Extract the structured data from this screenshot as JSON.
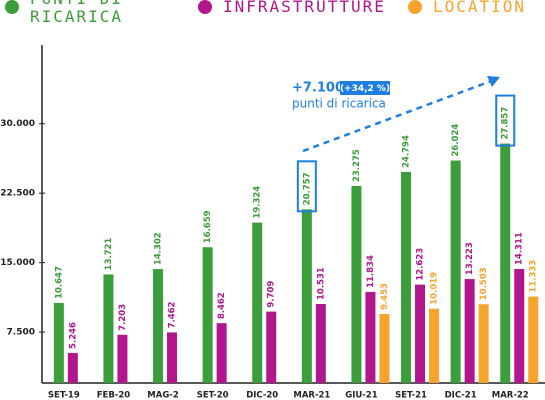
{
  "chart_data": {
    "type": "bar",
    "categories": [
      "SET-19",
      "FEB-20",
      "MAG-2",
      "SET-20",
      "DIC-20",
      "MAR-21",
      "GIU-21",
      "SET-21",
      "DIC-21",
      "MAR-22"
    ],
    "series": [
      {
        "name": "PUNTI DI RICARICA",
        "color": "#3c9e3a",
        "values": [
          10647,
          13721,
          14302,
          16659,
          19324,
          20757,
          23275,
          24794,
          26024,
          27857
        ],
        "value_labels": [
          "10.647",
          "13.721",
          "14.302",
          "16.659",
          "19.324",
          "20.757",
          "23.275",
          "24.794",
          "26.024",
          "27.857"
        ]
      },
      {
        "name": "INFRASTRUTTURE",
        "color": "#b2168e",
        "values": [
          5246,
          7203,
          7462,
          8462,
          9709,
          10531,
          11834,
          12623,
          13223,
          14311
        ],
        "value_labels": [
          "5.246",
          "7.203",
          "7.462",
          "8.462",
          "9.709",
          "10.531",
          "11.834",
          "12.623",
          "13.223",
          "14.311"
        ]
      },
      {
        "name": "LOCATION",
        "color": "#f7a32c",
        "values": [
          null,
          null,
          null,
          null,
          null,
          null,
          9453,
          10019,
          10503,
          11333
        ],
        "value_labels": [
          null,
          null,
          null,
          null,
          null,
          null,
          "9.453",
          "10.019",
          "10.503",
          "11.333"
        ]
      }
    ],
    "ylim": [
      2000,
      38500
    ],
    "yticks": [
      {
        "value": 7500,
        "label": "7.500"
      },
      {
        "value": 15000,
        "label": "15.000"
      },
      {
        "value": 22500,
        "label": "22.500"
      },
      {
        "value": 30000,
        "label": "30.000"
      }
    ],
    "grid": false,
    "annotation": {
      "change": "+7.100",
      "percent": "(+34,2 %)",
      "label": "punti di ricarica"
    }
  }
}
